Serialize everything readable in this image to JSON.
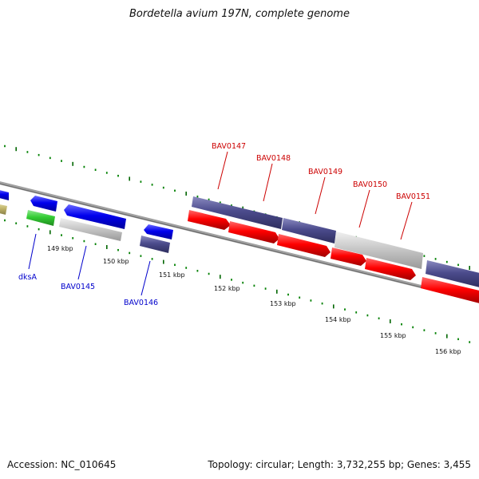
{
  "title": "Bordetella avium 197N, complete genome",
  "footer": {
    "accession": "Accession: NC_010645",
    "summary": "Topology: circular; Length: 3,732,255 bp; Genes: 3,455"
  },
  "colors": {
    "forward_label": "#cc0000",
    "reverse_label": "#0000cc",
    "tick_minor": "#008000",
    "tick_major": "#006600",
    "backbone": "#808080",
    "gene_red": "#ff0000",
    "gene_blue": "#0000ee",
    "gene_purple": "#4b4b8c",
    "gene_gray": "#c8c8c8",
    "gene_green": "#33cc33",
    "gene_olive": "#bfb36a"
  },
  "scale": {
    "ticks": [
      {
        "label": "149 kbp"
      },
      {
        "label": "150 kbp"
      },
      {
        "label": "151 kbp"
      },
      {
        "label": "152 kbp"
      },
      {
        "label": "153 kbp"
      },
      {
        "label": "154 kbp"
      },
      {
        "label": "155 kbp"
      },
      {
        "label": "156 kbp"
      }
    ]
  },
  "gene_labels": {
    "forward": [
      "BAV0147",
      "BAV0148",
      "BAV0149",
      "BAV0150",
      "BAV0151"
    ],
    "reverse": [
      "dksA",
      "BAV0145",
      "BAV0146"
    ]
  }
}
